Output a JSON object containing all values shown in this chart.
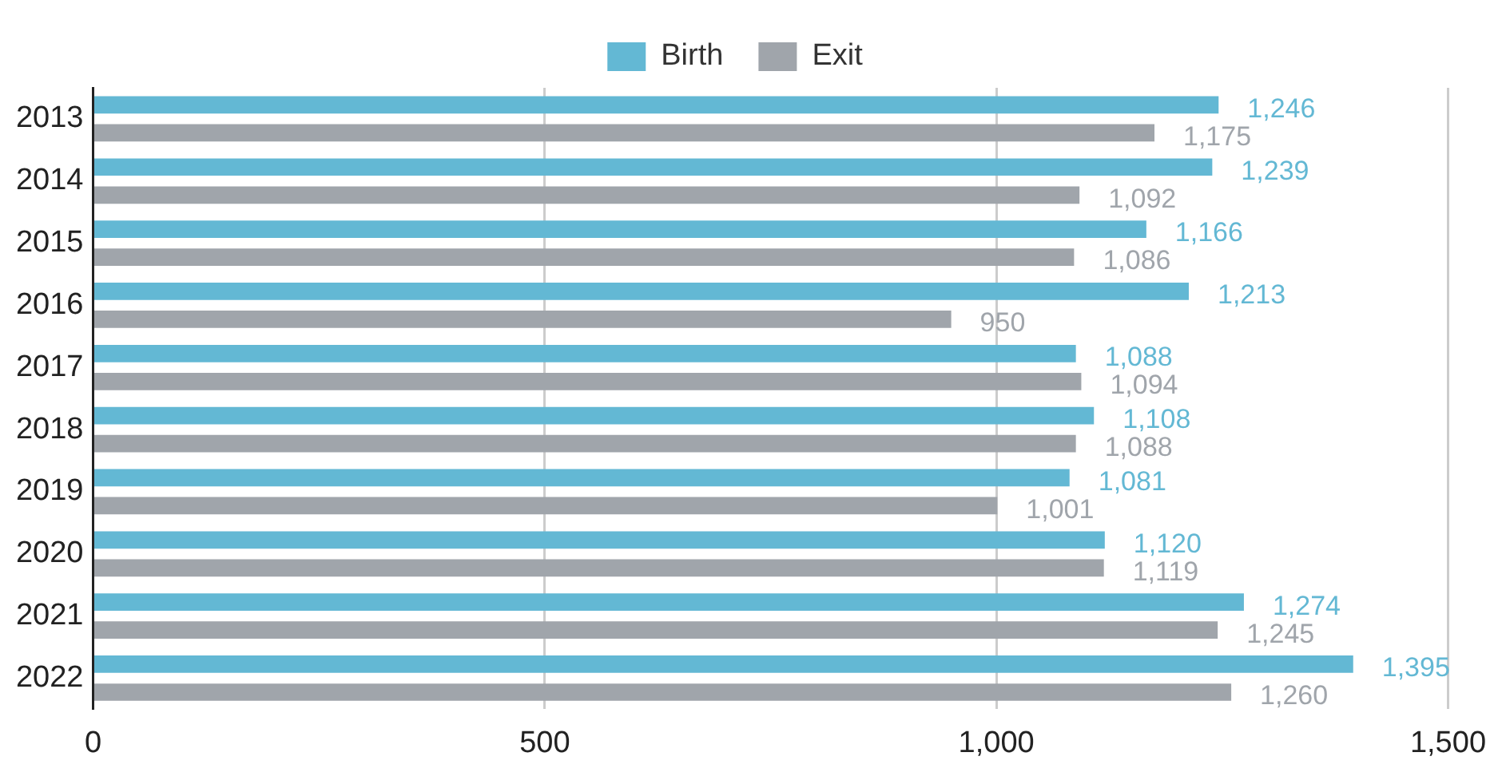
{
  "chart_data": {
    "type": "bar",
    "orientation": "horizontal",
    "categories": [
      "2013",
      "2014",
      "2015",
      "2016",
      "2017",
      "2018",
      "2019",
      "2020",
      "2021",
      "2022"
    ],
    "series": [
      {
        "name": "Birth",
        "color": "#63b8d4",
        "values": [
          1246,
          1239,
          1166,
          1213,
          1088,
          1108,
          1081,
          1120,
          1274,
          1395
        ],
        "value_labels": [
          "1,246",
          "1,239",
          "1,166",
          "1,213",
          "1,088",
          "1,108",
          "1,081",
          "1,120",
          "1,274",
          "1,395"
        ]
      },
      {
        "name": "Exit",
        "color": "#a0a5ab",
        "values": [
          1175,
          1092,
          1086,
          950,
          1094,
          1088,
          1001,
          1119,
          1245,
          1260
        ],
        "value_labels": [
          "1,175",
          "1,092",
          "1,086",
          "950",
          "1,094",
          "1,088",
          "1,001",
          "1,119",
          "1,245",
          "1,260"
        ]
      }
    ],
    "xlim": [
      0,
      1500
    ],
    "xticks": [
      0,
      500,
      {
        "value": 1000,
        "label": "1,000"
      },
      {
        "value": 1500,
        "label": "1,500"
      }
    ],
    "grid": "x",
    "legend": "top"
  }
}
